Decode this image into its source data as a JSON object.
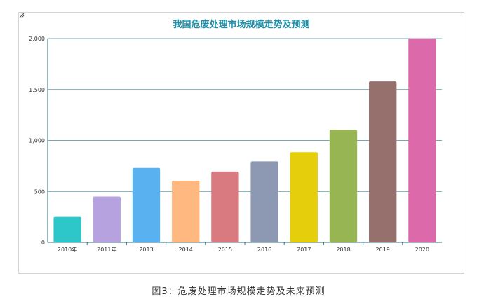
{
  "chart_data": {
    "type": "bar",
    "title": "我国危废处理市场规模走势及预测",
    "categories": [
      "2010年",
      "2011年",
      "2013",
      "2014",
      "2015",
      "2016",
      "2017",
      "2018",
      "2019",
      "2020"
    ],
    "values": [
      250,
      450,
      730,
      605,
      695,
      795,
      885,
      1105,
      1580,
      2000
    ],
    "colors": [
      "#2ec7c9",
      "#b6a2de",
      "#5ab1ef",
      "#ffb980",
      "#d87a80",
      "#8d98b3",
      "#e5cf0d",
      "#97b552",
      "#95706d",
      "#dc69aa"
    ],
    "ylim": [
      0,
      2000
    ],
    "yticks": [
      0,
      500,
      1000,
      1500,
      2000
    ],
    "ytick_labels": [
      "0",
      "500",
      "1,000",
      "1,500",
      "2,000"
    ],
    "xlabel": "",
    "ylabel": "",
    "grid": true,
    "grid_color": "#4a8a9a"
  },
  "caption": "图3：危废处理市场规模走势及未来预测"
}
